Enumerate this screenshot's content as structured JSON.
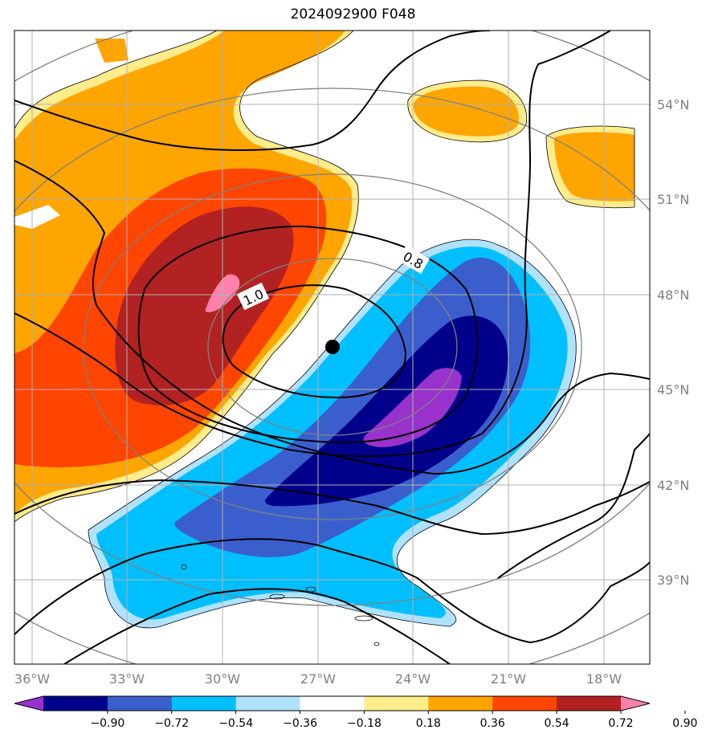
{
  "title": "2024092900 F048",
  "longitude_labels": [
    "36°W",
    "33°W",
    "30°W",
    "27°W",
    "24°W",
    "21°W",
    "18°W"
  ],
  "latitude_labels": [
    "54°N",
    "51°N",
    "48°N",
    "45°N",
    "42°N",
    "39°N"
  ],
  "contour_labels": [
    "0.8",
    "1.0"
  ],
  "colorbar": {
    "ticks": [
      "−0.90",
      "−0.72",
      "−0.54",
      "−0.36",
      "−0.18",
      "0.18",
      "0.36",
      "0.54",
      "0.72",
      "0.90"
    ],
    "colors": [
      "#9932CC",
      "#00008B",
      "#3A5FCD",
      "#00BFFF",
      "#B0E2FF",
      "#FFFFFF",
      "#FFEC8B",
      "#FFA500",
      "#FF4500",
      "#B22222",
      "#FF82AB"
    ]
  },
  "colors": {
    "grid": "#b0b0b0",
    "range_rings": "#808080",
    "contours": "#000000"
  },
  "marker": "storm-center-dot"
}
